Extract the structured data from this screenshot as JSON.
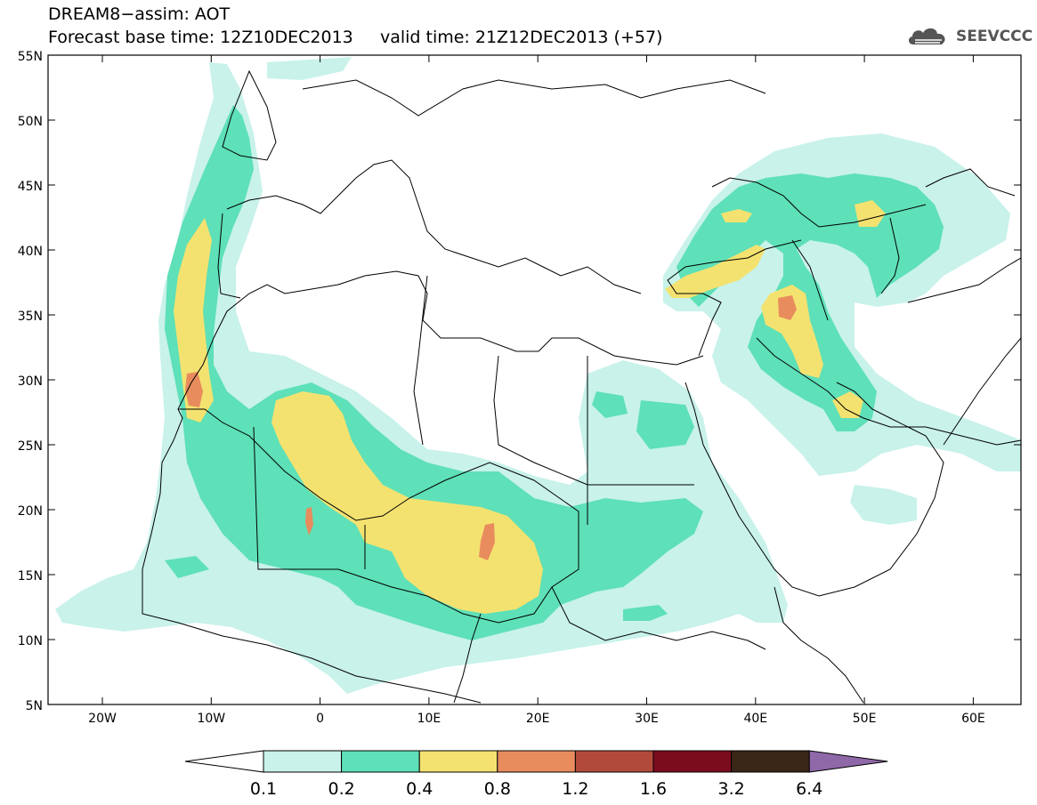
{
  "header": {
    "title_line1": "DREAM8−assim: AOT",
    "title_line2": "Forecast base time: 12Z10DEC2013     valid time: 21Z12DEC2013 (+57)"
  },
  "logo": {
    "text": "SEEVCCC",
    "icon": "cloud-icon"
  },
  "map": {
    "lat_labels": [
      "55N",
      "50N",
      "45N",
      "40N",
      "35N",
      "30N",
      "25N",
      "20N",
      "15N",
      "10N",
      "5N"
    ],
    "lon_labels": [
      "20W",
      "10W",
      "0",
      "10E",
      "20E",
      "30E",
      "40E",
      "50E",
      "60E"
    ]
  },
  "colorbar": {
    "labels": [
      "0.1",
      "0.2",
      "0.4",
      "0.8",
      "1.2",
      "1.6",
      "3.2",
      "6.4"
    ],
    "colors": [
      "#ffffff",
      "#c8f2ea",
      "#5ee0b8",
      "#f4e270",
      "#e88c5e",
      "#b24a3c",
      "#7a0c1e",
      "#3a2616",
      "#8f68a8"
    ]
  }
}
